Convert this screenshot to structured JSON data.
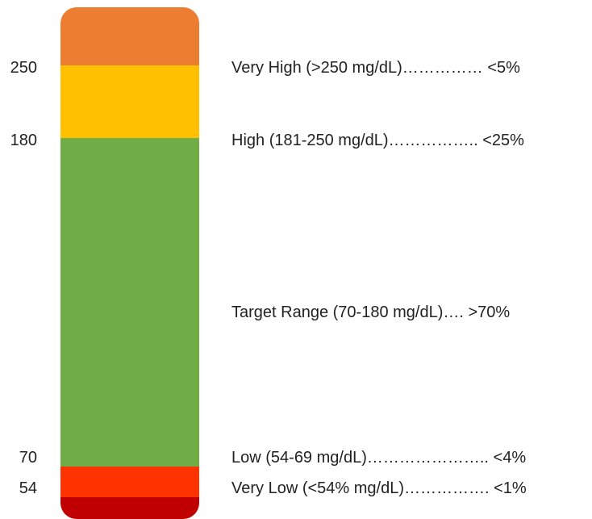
{
  "chart_data": {
    "type": "bar",
    "orientation": "vertical-stacked",
    "tick_labels": [
      "250",
      "180",
      "70",
      "54"
    ],
    "ranges": [
      {
        "label": "Very High (>250 mg/dL)…………… <5%",
        "color": "#ED7D31"
      },
      {
        "label": "High (181-250 mg/dL)…………….. <25%",
        "color": "#FFC000"
      },
      {
        "label": "Target Range (70-180 mg/dL)…. >70%",
        "color": "#70AD47"
      },
      {
        "label": "Low (54-69 mg/dL)………………….. <4%",
        "color": "#FF3300"
      },
      {
        "label": "Very Low (<54% mg/dL)……………. <1%",
        "color": "#C00000"
      }
    ]
  }
}
